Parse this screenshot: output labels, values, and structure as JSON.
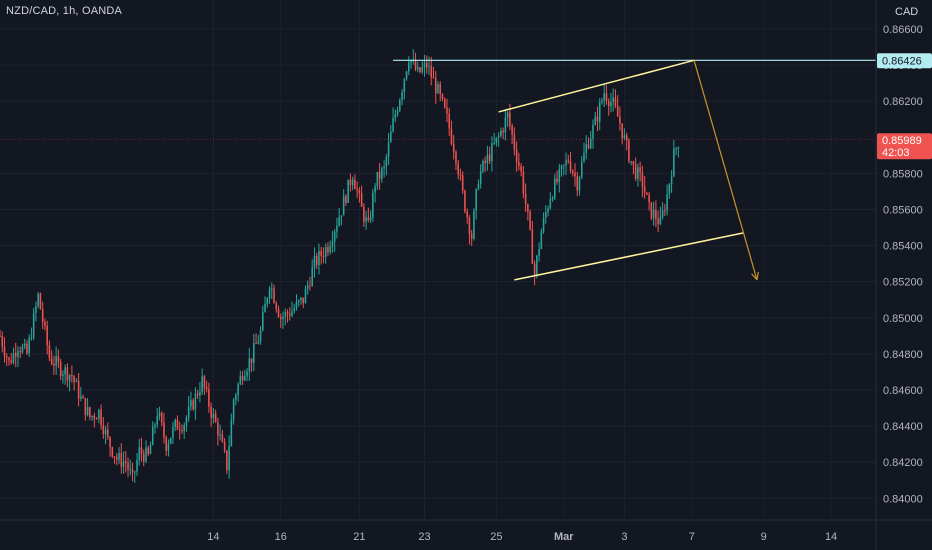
{
  "symbol": "NZD/CAD, 1h, OANDA",
  "currency": "CAD",
  "colors": {
    "background": "#131722",
    "up": "#26a69a",
    "down": "#ef5350",
    "grid": "#1e222d",
    "resistance": "#b2ebf2",
    "channel": "#fff59d",
    "arrow": "#c8942a"
  },
  "chart_data": {
    "type": "candlestick",
    "title": "",
    "y_axis": {
      "min": 0.8388,
      "max": 0.8676,
      "tick_labels": [
        "0.84000",
        "0.84200",
        "0.84400",
        "0.84600",
        "0.84800",
        "0.85000",
        "0.85200",
        "0.85400",
        "0.85600",
        "0.85800",
        "0.86200",
        "0.86400",
        "0.86600"
      ],
      "ticks": [
        0.84,
        0.842,
        0.844,
        0.846,
        0.848,
        0.85,
        0.852,
        0.854,
        0.856,
        0.858,
        0.862,
        0.864,
        0.866
      ]
    },
    "x_axis": {
      "tick_labels": [
        "14",
        "16",
        "21",
        "23",
        "25",
        "Mar",
        "3",
        "7",
        "9",
        "14"
      ],
      "tick_positions_bars": [
        95,
        125,
        160,
        189,
        221,
        251,
        278,
        308,
        340,
        370
      ]
    },
    "price_tags": [
      {
        "label": "0.86426",
        "value": 0.86426,
        "kind": "resistance"
      },
      {
        "label": "0.85989",
        "sub": "42:03",
        "value": 0.85989,
        "kind": "last"
      }
    ],
    "swing_path": [
      [
        0,
        0.849
      ],
      [
        4,
        0.8475
      ],
      [
        8,
        0.8485
      ],
      [
        12,
        0.848
      ],
      [
        17,
        0.8512
      ],
      [
        22,
        0.8478
      ],
      [
        27,
        0.8472
      ],
      [
        32,
        0.8468
      ],
      [
        36,
        0.8455
      ],
      [
        40,
        0.8445
      ],
      [
        44,
        0.8448
      ],
      [
        48,
        0.8432
      ],
      [
        52,
        0.8422
      ],
      [
        56,
        0.842
      ],
      [
        59,
        0.841
      ],
      [
        62,
        0.8426
      ],
      [
        66,
        0.8423
      ],
      [
        70,
        0.8448
      ],
      [
        74,
        0.843
      ],
      [
        78,
        0.844
      ],
      [
        82,
        0.8442
      ],
      [
        86,
        0.8453
      ],
      [
        90,
        0.8465
      ],
      [
        94,
        0.8448
      ],
      [
        97,
        0.8438
      ],
      [
        99,
        0.8428
      ],
      [
        101,
        0.8418
      ],
      [
        104,
        0.8455
      ],
      [
        108,
        0.847
      ],
      [
        112,
        0.8478
      ],
      [
        116,
        0.8492
      ],
      [
        120,
        0.852
      ],
      [
        125,
        0.85
      ],
      [
        130,
        0.8504
      ],
      [
        135,
        0.851
      ],
      [
        140,
        0.853
      ],
      [
        146,
        0.854
      ],
      [
        152,
        0.856
      ],
      [
        157,
        0.858
      ],
      [
        161,
        0.856
      ],
      [
        164,
        0.855
      ],
      [
        167,
        0.8575
      ],
      [
        171,
        0.8582
      ],
      [
        175,
        0.8608
      ],
      [
        179,
        0.8628
      ],
      [
        182,
        0.8645
      ],
      [
        186,
        0.8635
      ],
      [
        190,
        0.864
      ],
      [
        195,
        0.8625
      ],
      [
        199,
        0.861
      ],
      [
        203,
        0.859
      ],
      [
        206,
        0.8568
      ],
      [
        210,
        0.8545
      ],
      [
        213,
        0.8578
      ],
      [
        217,
        0.8588
      ],
      [
        222,
        0.86
      ],
      [
        226,
        0.8612
      ],
      [
        229,
        0.8595
      ],
      [
        232,
        0.858
      ],
      [
        235,
        0.8555
      ],
      [
        238,
        0.8524
      ],
      [
        241,
        0.8548
      ],
      [
        245,
        0.8568
      ],
      [
        249,
        0.8578
      ],
      [
        253,
        0.8588
      ],
      [
        257,
        0.8575
      ],
      [
        261,
        0.8595
      ],
      [
        265,
        0.8608
      ],
      [
        269,
        0.8625
      ],
      [
        273,
        0.8618
      ],
      [
        276,
        0.8608
      ],
      [
        279,
        0.8594
      ],
      [
        282,
        0.8583
      ],
      [
        286,
        0.8575
      ],
      [
        289,
        0.856
      ],
      [
        292,
        0.8556
      ],
      [
        294,
        0.8552
      ],
      [
        297,
        0.8568
      ],
      [
        300,
        0.859
      ],
      [
        302,
        0.8598
      ]
    ],
    "annotations": {
      "resistance_line": {
        "x_start": 175,
        "x_end": "chart_right",
        "y": 0.86426
      },
      "channel_upper": {
        "x1": 222,
        "y1": 0.8614,
        "x2": 309,
        "y2": 0.86426
      },
      "channel_lower": {
        "x1": 229,
        "y1": 0.8521,
        "x2": 331,
        "y2": 0.8547
      },
      "projection_arrow": {
        "x1": 309,
        "y1": 0.86426,
        "x2": 337,
        "y2": 0.8521
      }
    }
  }
}
